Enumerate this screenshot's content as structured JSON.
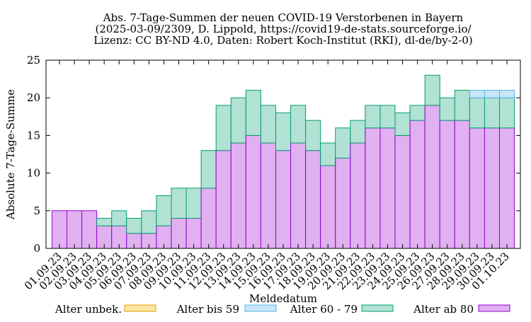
{
  "chart_data": {
    "type": "bar",
    "stacked": true,
    "title_lines": [
      "Abs. 7-Tage-Summen der neuen COVID-19 Verstorbenen in Bayern",
      "(2025-03-09/2309, D. Lippold, https://covid19-de-stats.sourceforge.io/",
      "Lizenz: CC BY-ND 4.0, Daten: Robert Koch-Institut (RKI), dl-de/by-2-0)"
    ],
    "xlabel": "Meldedatum",
    "ylabel": "Absolute 7-Tage-Summe",
    "ylim": [
      0,
      25
    ],
    "yticks": [
      0,
      5,
      10,
      15,
      20,
      25
    ],
    "grid": false,
    "legend_position": "bottom",
    "categories": [
      "01.09.23",
      "02.09.23",
      "03.09.23",
      "04.09.23",
      "05.09.23",
      "06.09.23",
      "07.09.23",
      "08.09.23",
      "09.09.23",
      "10.09.23",
      "11.09.23",
      "12.09.23",
      "13.09.23",
      "14.09.23",
      "15.09.23",
      "16.09.23",
      "17.09.23",
      "18.09.23",
      "19.09.23",
      "20.09.23",
      "21.09.23",
      "22.09.23",
      "23.09.23",
      "24.09.23",
      "25.09.23",
      "26.09.23",
      "27.09.23",
      "28.09.23",
      "29.09.23",
      "30.09.23",
      "01.10.23"
    ],
    "series": [
      {
        "name": "Alter ab 80",
        "fill": "#e0b0f0",
        "stroke": "#9400d3",
        "values": [
          5,
          5,
          5,
          3,
          3,
          2,
          2,
          3,
          4,
          4,
          8,
          13,
          14,
          15,
          14,
          13,
          14,
          13,
          11,
          12,
          14,
          16,
          16,
          15,
          17,
          19,
          17,
          17,
          16,
          16,
          16
        ]
      },
      {
        "name": "Alter 60 - 79",
        "fill": "#b2e2d4",
        "stroke": "#009e73",
        "values": [
          0,
          0,
          0,
          1,
          2,
          2,
          3,
          4,
          4,
          4,
          5,
          6,
          6,
          6,
          5,
          5,
          5,
          4,
          3,
          4,
          3,
          3,
          3,
          3,
          2,
          4,
          3,
          4,
          4,
          4,
          4
        ]
      },
      {
        "name": "Alter bis 59",
        "fill": "#c8e6f8",
        "stroke": "#56b4e9",
        "values": [
          0,
          0,
          0,
          0,
          0,
          0,
          0,
          0,
          0,
          0,
          0,
          0,
          0,
          0,
          0,
          0,
          0,
          0,
          0,
          0,
          0,
          0,
          0,
          0,
          0,
          0,
          0,
          0,
          1,
          1,
          1
        ]
      },
      {
        "name": "Alter unbek.",
        "fill": "#fde4a6",
        "stroke": "#e69f00",
        "values": [
          0,
          0,
          0,
          0,
          0,
          0,
          0,
          0,
          0,
          0,
          0,
          0,
          0,
          0,
          0,
          0,
          0,
          0,
          0,
          0,
          0,
          0,
          0,
          0,
          0,
          0,
          0,
          0,
          0,
          0,
          0
        ]
      }
    ],
    "legend_order": [
      "Alter unbek.",
      "Alter bis 59",
      "Alter 60 - 79",
      "Alter ab 80"
    ]
  }
}
